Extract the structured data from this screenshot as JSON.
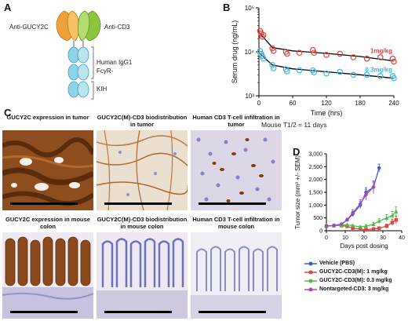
{
  "panels": {
    "a": "A",
    "b": "B",
    "c": "C",
    "d": "D"
  },
  "panel_a": {
    "label_left": "Anti-GUCY2C",
    "label_right": "Anti-CD3",
    "label_igg": "Human IgG1",
    "label_fcyr": "FcγR-",
    "label_kih": "KIH",
    "colors": {
      "anti_gucy2c": "#f0a23a",
      "anti_cd3": "#8cc63e",
      "fc": "#8fd3e8"
    }
  },
  "panel_c": {
    "captions": [
      "GUCY2C expression in tumor",
      "GUCY2C(M)-CD3 biodistribution in tumor",
      "Human CD3 T-cell infiltration in tumor",
      "GUCY2C expression in mouse colon",
      "GUCY2C(M)-CD3 biodistribution in mouse colon",
      "Human CD3 T-cell infiltration in mouse colon"
    ]
  },
  "chart_data": [
    {
      "type": "scatter",
      "xlabel": "Time (hrs)",
      "ylabel": "Serum drug (ng/mL)",
      "y_scale": "log",
      "xlim": [
        0,
        240
      ],
      "ylim": [
        1000,
        100000
      ],
      "x_ticks": [
        "0",
        "60",
        "120",
        "180",
        "240"
      ],
      "y_ticks": [
        "10³",
        "10⁴",
        "10⁵"
      ],
      "footnote": "Mouse T1/2 = 11 days",
      "series": [
        {
          "name": "1mg/kg",
          "color": "#e0443c",
          "points": [
            [
              2,
              30000
            ],
            [
              4,
              26000
            ],
            [
              6,
              22000
            ],
            [
              8,
              24000
            ],
            [
              24,
              12000
            ],
            [
              26,
              10500
            ],
            [
              48,
              10000
            ],
            [
              50,
              9000
            ],
            [
              72,
              9500
            ],
            [
              96,
              11000
            ],
            [
              98,
              9500
            ],
            [
              120,
              8500
            ],
            [
              144,
              9000
            ],
            [
              168,
              7500
            ],
            [
              192,
              7000
            ],
            [
              216,
              7500
            ],
            [
              240,
              6000
            ],
            [
              238,
              7000
            ]
          ],
          "fit": [
            [
              0,
              28000
            ],
            [
              24,
              12500
            ],
            [
              60,
              10500
            ],
            [
              120,
              9200
            ],
            [
              180,
              7800
            ],
            [
              240,
              6200
            ]
          ]
        },
        {
          "name": "0.3mg/kg",
          "color": "#45b6e0",
          "points": [
            [
              2,
              10500
            ],
            [
              4,
              9000
            ],
            [
              6,
              8000
            ],
            [
              8,
              7000
            ],
            [
              24,
              5000
            ],
            [
              26,
              4200
            ],
            [
              48,
              4000
            ],
            [
              50,
              3600
            ],
            [
              72,
              3800
            ],
            [
              96,
              3800
            ],
            [
              98,
              3400
            ],
            [
              120,
              3200
            ],
            [
              144,
              3500
            ],
            [
              168,
              3000
            ],
            [
              192,
              3000
            ],
            [
              216,
              2800
            ],
            [
              240,
              2500
            ],
            [
              238,
              2800
            ]
          ],
          "fit": [
            [
              0,
              9500
            ],
            [
              24,
              5000
            ],
            [
              60,
              4100
            ],
            [
              120,
              3500
            ],
            [
              180,
              3000
            ],
            [
              240,
              2500
            ]
          ]
        }
      ]
    },
    {
      "type": "line",
      "xlabel": "Days post dosing",
      "ylabel": "Tumor size (mm³ +/- SEM)",
      "xlim": [
        0,
        40
      ],
      "ylim": [
        0,
        3000
      ],
      "x_ticks": [
        "0",
        "10",
        "20",
        "30",
        "40"
      ],
      "y_ticks": [
        "0",
        "500",
        "1,000",
        "1,500",
        "2,000",
        "2,500",
        "3,000"
      ],
      "series": [
        {
          "name": "Vehicle (PBS)",
          "color": "#3b5bc9",
          "marker": "circle",
          "x": [
            0,
            4,
            8,
            11,
            14,
            18,
            21,
            25,
            28
          ],
          "y": [
            180,
            200,
            250,
            420,
            650,
            1000,
            1500,
            1700,
            2450
          ],
          "err": [
            20,
            30,
            40,
            60,
            100,
            140,
            180,
            200,
            150
          ]
        },
        {
          "name": "GUCY2C-CD3(M): 1 mg/kg",
          "color": "#e0443c",
          "marker": "square",
          "x": [
            0,
            4,
            8,
            11,
            14,
            18,
            21,
            25,
            28,
            32,
            35,
            37
          ],
          "y": [
            180,
            200,
            200,
            170,
            100,
            60,
            40,
            70,
            100,
            180,
            320,
            420
          ],
          "err": [
            20,
            30,
            30,
            30,
            30,
            20,
            20,
            30,
            50,
            80,
            120,
            150
          ]
        },
        {
          "name": "GUCY2C-CD3(M): 0.3 mg/kg",
          "color": "#57b84a",
          "marker": "triangle",
          "x": [
            0,
            4,
            8,
            11,
            14,
            18,
            21,
            25,
            28,
            32,
            35,
            37
          ],
          "y": [
            180,
            200,
            220,
            230,
            200,
            150,
            180,
            250,
            380,
            500,
            600,
            750
          ],
          "err": [
            20,
            30,
            30,
            40,
            40,
            40,
            60,
            80,
            100,
            130,
            150,
            180
          ]
        },
        {
          "name": "Nontargeted-CD3: 3 mg/kg",
          "color": "#9b4fb5",
          "marker": "diamond",
          "x": [
            0,
            4,
            8,
            11,
            14,
            18,
            21,
            25
          ],
          "y": [
            180,
            210,
            260,
            430,
            700,
            1050,
            1400,
            1700
          ],
          "err": [
            20,
            30,
            40,
            60,
            120,
            160,
            200,
            250
          ]
        }
      ]
    }
  ]
}
